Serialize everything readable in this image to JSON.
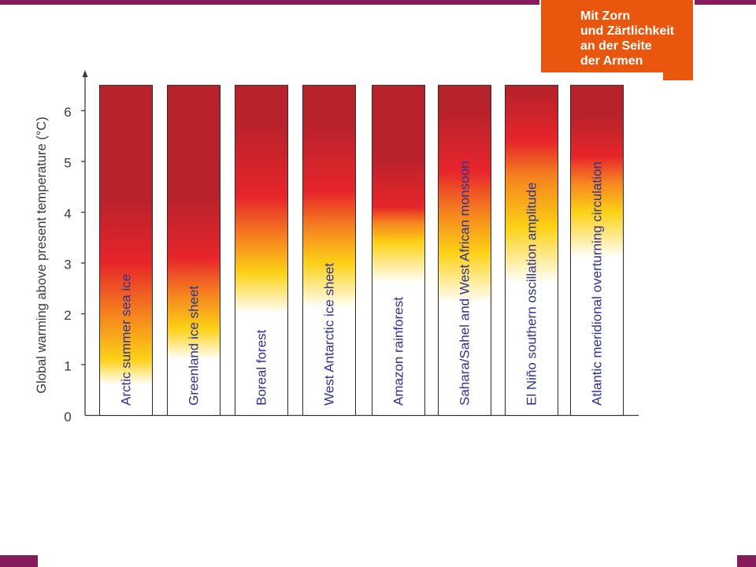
{
  "theme": {
    "purple": "#861c5c",
    "logo_orange": "#e9560e",
    "label_blue": "#2e3192",
    "axis_gray": "#3a3a3a"
  },
  "logo": {
    "lines": [
      "Mit Zorn",
      "und Zärtlichkeit",
      "an der Seite",
      "der Armen"
    ]
  },
  "chart_data": {
    "type": "heatmap",
    "ylabel": "Global warming above present temperature (°C)",
    "ylim": [
      0,
      6.5
    ],
    "yticks": [
      0,
      1,
      2,
      3,
      4,
      5,
      6
    ],
    "categories": [
      "Arctic summer sea ice",
      "Greenland ice sheet",
      "Boreal forest",
      "West Antarctic ice sheet",
      "Amazon rainforest",
      "Sahara/Sahel and West African monsoon",
      "El Niño southern oscillation amplitude",
      "Atlantic meridional overturning circulation"
    ],
    "color_scale": {
      "white": "#ffffff",
      "yellow": "#fcd116",
      "orange": "#f5821f",
      "red": "#e7252b",
      "dark_red": "#b8222b"
    },
    "values": [
      {
        "white": 0.6,
        "yellow": 1.1,
        "orange": 2.0,
        "red": 3.0,
        "dark_red": 4.3
      },
      {
        "white": 1.1,
        "yellow": 1.7,
        "orange": 2.4,
        "red": 3.1,
        "dark_red": 4.3
      },
      {
        "white": 2.0,
        "yellow": 2.8,
        "orange": 3.5,
        "red": 4.3,
        "dark_red": 5.8
      },
      {
        "white": 2.1,
        "yellow": 3.0,
        "orange": 3.7,
        "red": 4.4,
        "dark_red": 5.7
      },
      {
        "white": 2.6,
        "yellow": 3.4,
        "orange": 3.8,
        "red": 4.1,
        "dark_red": 5.1
      },
      {
        "white": 2.2,
        "yellow": 3.2,
        "orange": 4.0,
        "red": 4.8,
        "dark_red": 6.0
      },
      {
        "white": 2.6,
        "yellow": 3.7,
        "orange": 4.7,
        "red": 5.4,
        "dark_red": 6.4
      },
      {
        "white": 3.1,
        "yellow": 4.0,
        "orange": 4.6,
        "red": 5.1,
        "dark_red": 5.9
      }
    ]
  }
}
